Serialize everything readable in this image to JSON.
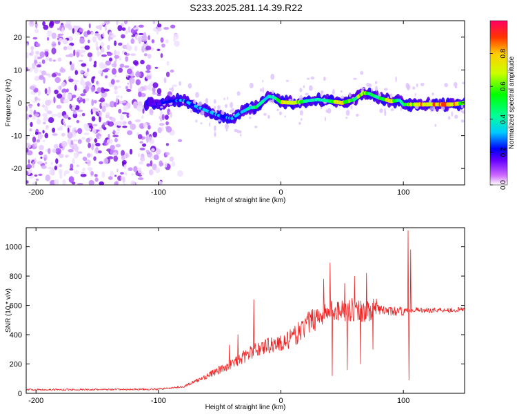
{
  "title": "S233.2025.281.14.39.R22",
  "chart_data": [
    {
      "type": "heatmap",
      "name": "spectrogram",
      "xlabel": "Height of straight line (km)",
      "ylabel": "Frequency (Hz)",
      "xlim": [
        -208,
        150
      ],
      "ylim": [
        -25,
        25
      ],
      "xticks": [
        -200,
        -100,
        0,
        100
      ],
      "xtick_labels": [
        "-200",
        "-100",
        "0",
        "100"
      ],
      "yticks": [
        -20,
        -10,
        0,
        10,
        20
      ],
      "ytick_labels": [
        "-20",
        "-10",
        "0",
        "10",
        "20"
      ],
      "noise_region_x": [
        -208,
        -80
      ],
      "ridge": {
        "x": [
          -108,
          -100,
          -90,
          -80,
          -70,
          -60,
          -50,
          -40,
          -33,
          -25,
          -20,
          -10,
          -5,
          0,
          10,
          20,
          30,
          40,
          50,
          60,
          67,
          72,
          80,
          90,
          97,
          100,
          105,
          120,
          140,
          150
        ],
        "freq_hz": [
          -0.5,
          -0.3,
          0.5,
          0.8,
          -1.0,
          -2.5,
          -4.0,
          -4.8,
          -3.0,
          -1.5,
          -1.3,
          2.0,
          1.5,
          0.2,
          0.0,
          0.5,
          1.0,
          0.5,
          0.0,
          1.0,
          3.0,
          2.8,
          1.5,
          0.5,
          0.8,
          -0.5,
          -0.5,
          -0.5,
          -0.5,
          0.0
        ],
        "amplitude": [
          0.1,
          0.25,
          0.3,
          0.35,
          0.35,
          0.4,
          0.35,
          0.35,
          0.4,
          0.5,
          0.55,
          0.45,
          0.5,
          0.85,
          0.95,
          0.5,
          0.5,
          0.6,
          0.9,
          0.55,
          0.8,
          0.6,
          0.55,
          0.85,
          0.5,
          0.6,
          0.8,
          0.95,
          0.95,
          0.7
        ]
      }
    },
    {
      "type": "colorbar",
      "name": "amplitude-colorbar",
      "label": "Normalized spectral amplitude",
      "range": [
        0,
        1
      ],
      "ticks": [
        0.0,
        0.2,
        0.4,
        0.6,
        0.8
      ],
      "tick_labels": [
        "0.0",
        "0.2",
        "0.4",
        "0.6",
        "0.8"
      ]
    },
    {
      "type": "line",
      "name": "snr",
      "color": "#ee2222",
      "xlabel": "Height of straight line (km)",
      "ylabel": "SNR (10 * v/v)",
      "xlim": [
        -208,
        150
      ],
      "ylim": [
        0,
        1130
      ],
      "xticks": [
        -200,
        -100,
        0,
        100
      ],
      "xtick_labels": [
        "-200",
        "-100",
        "0",
        "100"
      ],
      "yticks": [
        0,
        200,
        400,
        600,
        800,
        1000
      ],
      "ytick_labels": [
        "0",
        "200",
        "400",
        "600",
        "800",
        "1000"
      ],
      "envelope": {
        "x": [
          -208,
          -150,
          -100,
          -80,
          -70,
          -60,
          -50,
          -40,
          -30,
          -20,
          -10,
          0,
          10,
          20,
          30,
          40,
          50,
          60,
          70,
          80,
          90,
          100,
          110,
          120,
          130,
          140,
          150
        ],
        "y": [
          25,
          25,
          28,
          45,
          80,
          120,
          160,
          200,
          250,
          300,
          330,
          340,
          380,
          460,
          530,
          560,
          570,
          570,
          560,
          570,
          560,
          560,
          570,
          565,
          570,
          568,
          572
        ]
      },
      "spikes": [
        {
          "x": -42,
          "y": 330
        },
        {
          "x": -35,
          "y": 400
        },
        {
          "x": -22,
          "y": 640
        },
        {
          "x": 35,
          "y": 780
        },
        {
          "x": 40,
          "y": 890
        },
        {
          "x": 42,
          "y": 120
        },
        {
          "x": 52,
          "y": 750
        },
        {
          "x": 54,
          "y": 160
        },
        {
          "x": 60,
          "y": 800
        },
        {
          "x": 65,
          "y": 200
        },
        {
          "x": 70,
          "y": 820
        },
        {
          "x": 75,
          "y": 300
        },
        {
          "x": 104,
          "y": 1110
        },
        {
          "x": 104.5,
          "y": 90
        },
        {
          "x": 106,
          "y": 980
        }
      ]
    }
  ]
}
